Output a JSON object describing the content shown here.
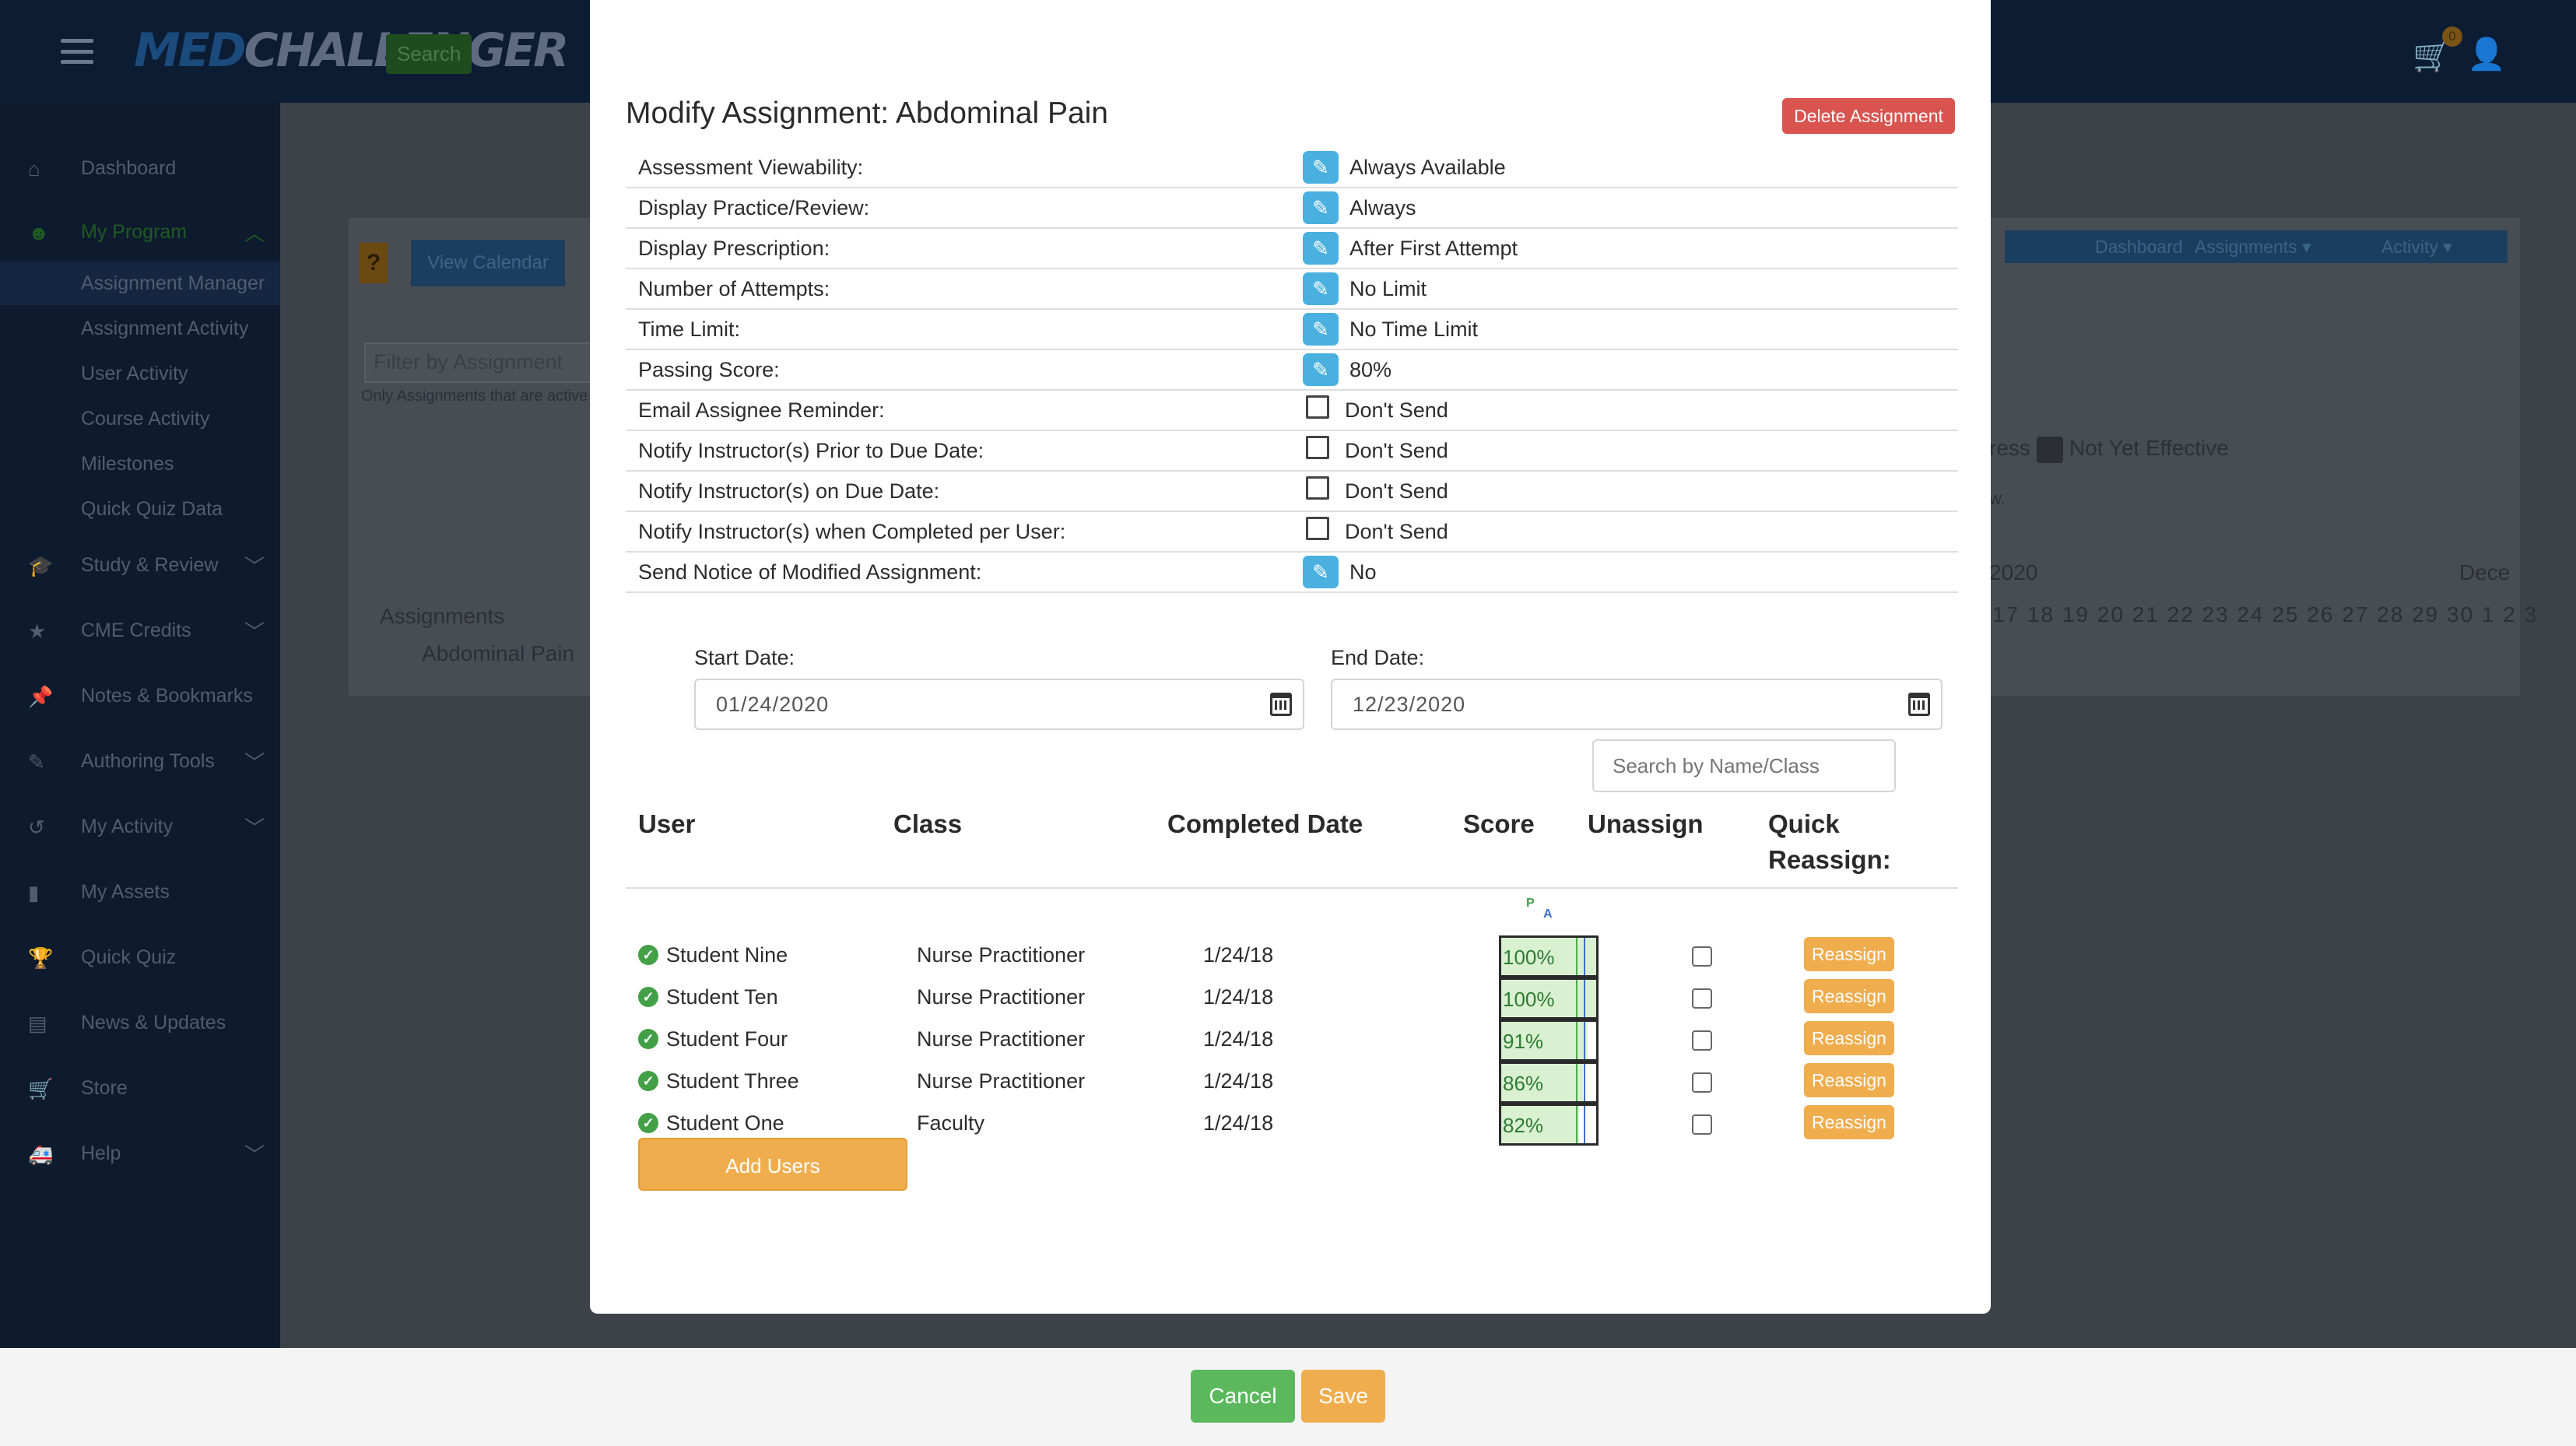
{
  "app": {
    "logo_prefix": "MED",
    "logo_suffix": "CHALLENGER",
    "search_label": "Search",
    "cart_count": "0"
  },
  "sidebar": {
    "items": [
      {
        "label": "Dashboard",
        "icon": "home-icon"
      },
      {
        "label": "My Program",
        "icon": "users-icon"
      },
      {
        "label": "Study & Review",
        "icon": "graduation-cap-icon"
      },
      {
        "label": "CME Credits",
        "icon": "certificate-icon"
      },
      {
        "label": "Notes & Bookmarks",
        "icon": "pin-icon"
      },
      {
        "label": "Authoring Tools",
        "icon": "edit-icon"
      },
      {
        "label": "My Activity",
        "icon": "history-icon"
      },
      {
        "label": "My Assets",
        "icon": "book-icon"
      },
      {
        "label": "Quick Quiz",
        "icon": "trophy-icon"
      },
      {
        "label": "News & Updates",
        "icon": "newspaper-icon"
      },
      {
        "label": "Store",
        "icon": "cart-icon"
      },
      {
        "label": "Help",
        "icon": "ambulance-icon"
      }
    ],
    "sub_items": [
      "Assignment Manager",
      "Assignment Activity",
      "User Activity",
      "Course Activity",
      "Milestones",
      "Quick Quiz Data"
    ]
  },
  "background": {
    "view_calendar": "View Calendar",
    "filter_placeholder": "Filter by Assignment",
    "filter_note": "Only Assignments that are active",
    "assignments_header": "Assignments",
    "assignment_row": "Abdominal Pain",
    "nav": [
      "Dashboard",
      "Assignments ▾",
      "Activity ▾"
    ],
    "legend_prefix": "ress",
    "legend_label": "Not Yet Effective",
    "legend_note": "w.",
    "calendar_year": "2020",
    "calendar_next": "Dece",
    "calendar_days": "17 18 19 20 21 22 23 24 25 26 27 28 29 30 1 2 3"
  },
  "modal": {
    "title": "Modify Assignment: Abdominal Pain",
    "delete_label": "Delete Assignment",
    "settings": [
      {
        "label": "Assessment Viewability:",
        "control": "edit",
        "value": "Always Available"
      },
      {
        "label": "Display Practice/Review:",
        "control": "edit",
        "value": "Always"
      },
      {
        "label": "Display Prescription:",
        "control": "edit",
        "value": "After First Attempt"
      },
      {
        "label": "Number of Attempts:",
        "control": "edit",
        "value": "No Limit"
      },
      {
        "label": "Time Limit:",
        "control": "edit",
        "value": "No Time Limit"
      },
      {
        "label": "Passing Score:",
        "control": "edit",
        "value": "80%"
      },
      {
        "label": "Email Assignee Reminder:",
        "control": "checkbox",
        "value": "Don't Send"
      },
      {
        "label": "Notify Instructor(s) Prior to Due Date:",
        "control": "checkbox",
        "value": "Don't Send"
      },
      {
        "label": "Notify Instructor(s) on Due Date:",
        "control": "checkbox",
        "value": "Don't Send"
      },
      {
        "label": "Notify Instructor(s) when Completed per User:",
        "control": "checkbox",
        "value": "Don't Send"
      },
      {
        "label": "Send Notice of Modified Assignment:",
        "control": "edit",
        "value": "No"
      }
    ],
    "start_date_label": "Start Date:",
    "start_date_value": "01/24/2020",
    "end_date_label": "End Date:",
    "end_date_value": "12/23/2020",
    "search_placeholder": "Search by Name/Class",
    "columns": {
      "user": "User",
      "class": "Class",
      "completed": "Completed Date",
      "score": "Score",
      "unassign": "Unassign",
      "quick_reassign": "Quick Reassign:"
    },
    "score_markers": {
      "passing": "P",
      "average": "A"
    },
    "users": [
      {
        "name": "Student Nine",
        "class": "Nurse Practitioner",
        "completed": "1/24/18",
        "score": "100%",
        "score_value": 100
      },
      {
        "name": "Student Ten",
        "class": "Nurse Practitioner",
        "completed": "1/24/18",
        "score": "100%",
        "score_value": 100
      },
      {
        "name": "Student Four",
        "class": "Nurse Practitioner",
        "completed": "1/24/18",
        "score": "91%",
        "score_value": 91
      },
      {
        "name": "Student Three",
        "class": "Nurse Practitioner",
        "completed": "1/24/18",
        "score": "86%",
        "score_value": 86
      },
      {
        "name": "Student One",
        "class": "Faculty",
        "completed": "1/24/18",
        "score": "82%",
        "score_value": 82
      }
    ],
    "reassign_label": "Reassign",
    "add_users_label": "Add Users"
  },
  "footer": {
    "cancel_label": "Cancel",
    "save_label": "Save"
  },
  "colors": {
    "edit_icon": "#4ab0e0",
    "delete": "#d9534f",
    "reassign": "#f0ad4e",
    "cancel": "#5cb85c",
    "save": "#f0ad4e",
    "complete_check": "#43a047"
  }
}
